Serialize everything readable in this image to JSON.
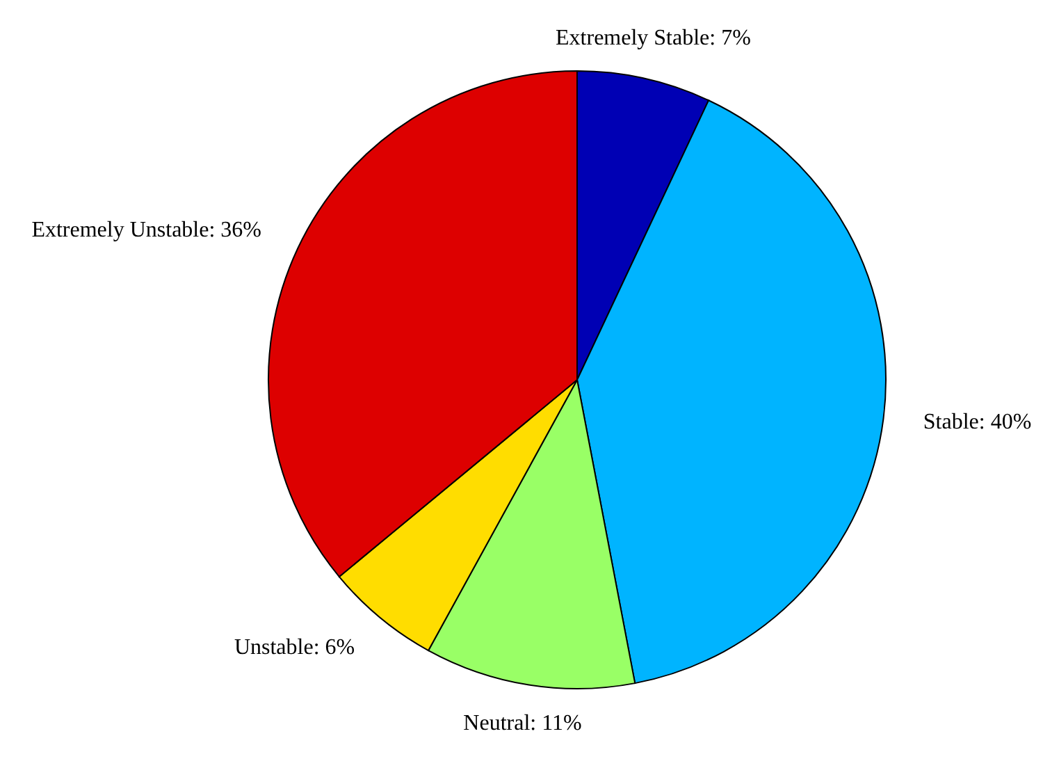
{
  "chart_data": {
    "type": "pie",
    "categories": [
      "Extremely Stable",
      "Stable",
      "Neutral",
      "Unstable",
      "Extremely Unstable"
    ],
    "values": [
      7,
      40,
      11,
      6,
      36
    ],
    "value_labels": [
      "7%",
      "40%",
      "11%",
      "6%",
      "36%"
    ],
    "colors": [
      "#0000b4",
      "#00b4ff",
      "#99ff66",
      "#ffdd00",
      "#dd0000"
    ]
  }
}
